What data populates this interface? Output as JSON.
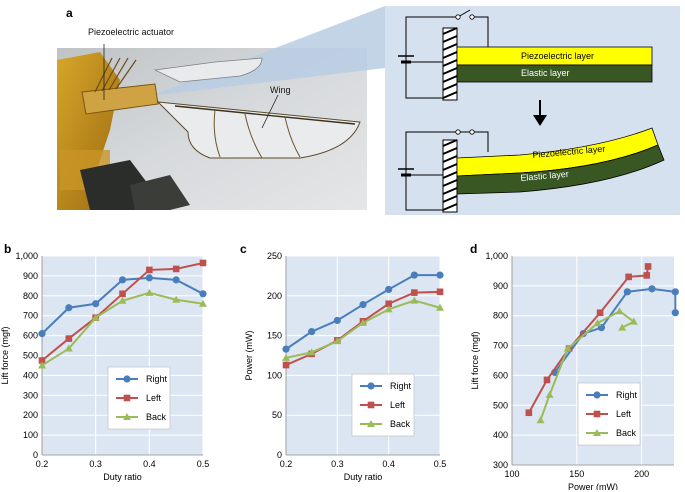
{
  "panel_a": {
    "letter": "a",
    "photo_labels": {
      "actuator": "Piezoelectric actuator",
      "wing": "Wing"
    },
    "diagram": {
      "top": {
        "piezo_label": "Piezoelectric layer",
        "elastic_label": "Elastic layer"
      },
      "bottom": {
        "piezo_label": "Piezoelectric layer",
        "elastic_label": "Elastic layer"
      }
    },
    "colors": {
      "piezo": "#ffff00",
      "elastic": "#385723",
      "panel_bg": "#d6e1ef"
    }
  },
  "series_colors": {
    "Right": "#4a7ebb",
    "Left": "#c0504d",
    "Back": "#9bbb59"
  },
  "chart_data": [
    {
      "id": "b",
      "type": "line",
      "letter": "b",
      "xlabel": "Duty ratio",
      "ylabel": "Lift force (mgf)",
      "xlim": [
        0.2,
        0.5
      ],
      "ylim": [
        0,
        1000
      ],
      "xticks": [
        0.2,
        0.3,
        0.4,
        0.5
      ],
      "xtick_labels": [
        "0.2",
        "0.3",
        "0.4",
        "0.5"
      ],
      "yticks": [
        0,
        100,
        200,
        300,
        400,
        500,
        600,
        700,
        800,
        900,
        1000
      ],
      "ytick_labels": [
        "0",
        "100",
        "200",
        "300",
        "400",
        "500",
        "600",
        "700",
        "800",
        "900",
        "1,000"
      ],
      "x": [
        0.2,
        0.25,
        0.3,
        0.35,
        0.4,
        0.45,
        0.5
      ],
      "series": [
        {
          "name": "Right",
          "values": [
            610,
            740,
            760,
            880,
            890,
            880,
            810
          ]
        },
        {
          "name": "Left",
          "values": [
            475,
            585,
            690,
            810,
            930,
            935,
            965
          ]
        },
        {
          "name": "Back",
          "values": [
            450,
            535,
            690,
            775,
            815,
            780,
            760
          ]
        }
      ],
      "legend": [
        "Right",
        "Left",
        "Back"
      ]
    },
    {
      "id": "c",
      "type": "line",
      "letter": "c",
      "xlabel": "Duty ratio",
      "ylabel": "Power (mW)",
      "xlim": [
        0.2,
        0.5
      ],
      "ylim": [
        0,
        250
      ],
      "xticks": [
        0.2,
        0.3,
        0.4,
        0.5
      ],
      "xtick_labels": [
        "0.2",
        "0.3",
        "0.4",
        "0.5"
      ],
      "yticks": [
        0,
        50,
        100,
        150,
        200,
        250
      ],
      "ytick_labels": [
        "0",
        "50",
        "100",
        "150",
        "200",
        "250"
      ],
      "x": [
        0.2,
        0.25,
        0.3,
        0.35,
        0.4,
        0.45,
        0.5
      ],
      "series": [
        {
          "name": "Right",
          "values": [
            133,
            155,
            169,
            189,
            208,
            226,
            226
          ]
        },
        {
          "name": "Left",
          "values": [
            113,
            127,
            144,
            168,
            190,
            204,
            205
          ]
        },
        {
          "name": "Back",
          "values": [
            122,
            129,
            143,
            166,
            183,
            194,
            185
          ]
        }
      ],
      "legend": [
        "Right",
        "Left",
        "Back"
      ]
    },
    {
      "id": "d",
      "type": "scatter",
      "letter": "d",
      "xlabel": "Power (mW)",
      "ylabel": "Lift force (mgf)",
      "xlim": [
        100,
        225
      ],
      "ylim": [
        300,
        1000
      ],
      "xticks": [
        100,
        150,
        200
      ],
      "xtick_labels": [
        "100",
        "150",
        "200"
      ],
      "yticks": [
        300,
        400,
        500,
        600,
        700,
        800,
        900,
        1000
      ],
      "ytick_labels": [
        "300",
        "400",
        "500",
        "600",
        "700",
        "800",
        "900",
        "1,000"
      ],
      "series": [
        {
          "name": "Right",
          "x": [
            133,
            155,
            169,
            189,
            208,
            226,
            226
          ],
          "y": [
            610,
            740,
            760,
            880,
            890,
            880,
            810
          ]
        },
        {
          "name": "Left",
          "x": [
            113,
            127,
            144,
            168,
            190,
            204,
            205
          ],
          "y": [
            475,
            585,
            690,
            810,
            930,
            935,
            965
          ]
        },
        {
          "name": "Back",
          "x": [
            122,
            129,
            143,
            166,
            183,
            194,
            185
          ],
          "y": [
            450,
            535,
            690,
            775,
            815,
            780,
            760
          ]
        }
      ],
      "legend": [
        "Right",
        "Left",
        "Back"
      ]
    }
  ]
}
